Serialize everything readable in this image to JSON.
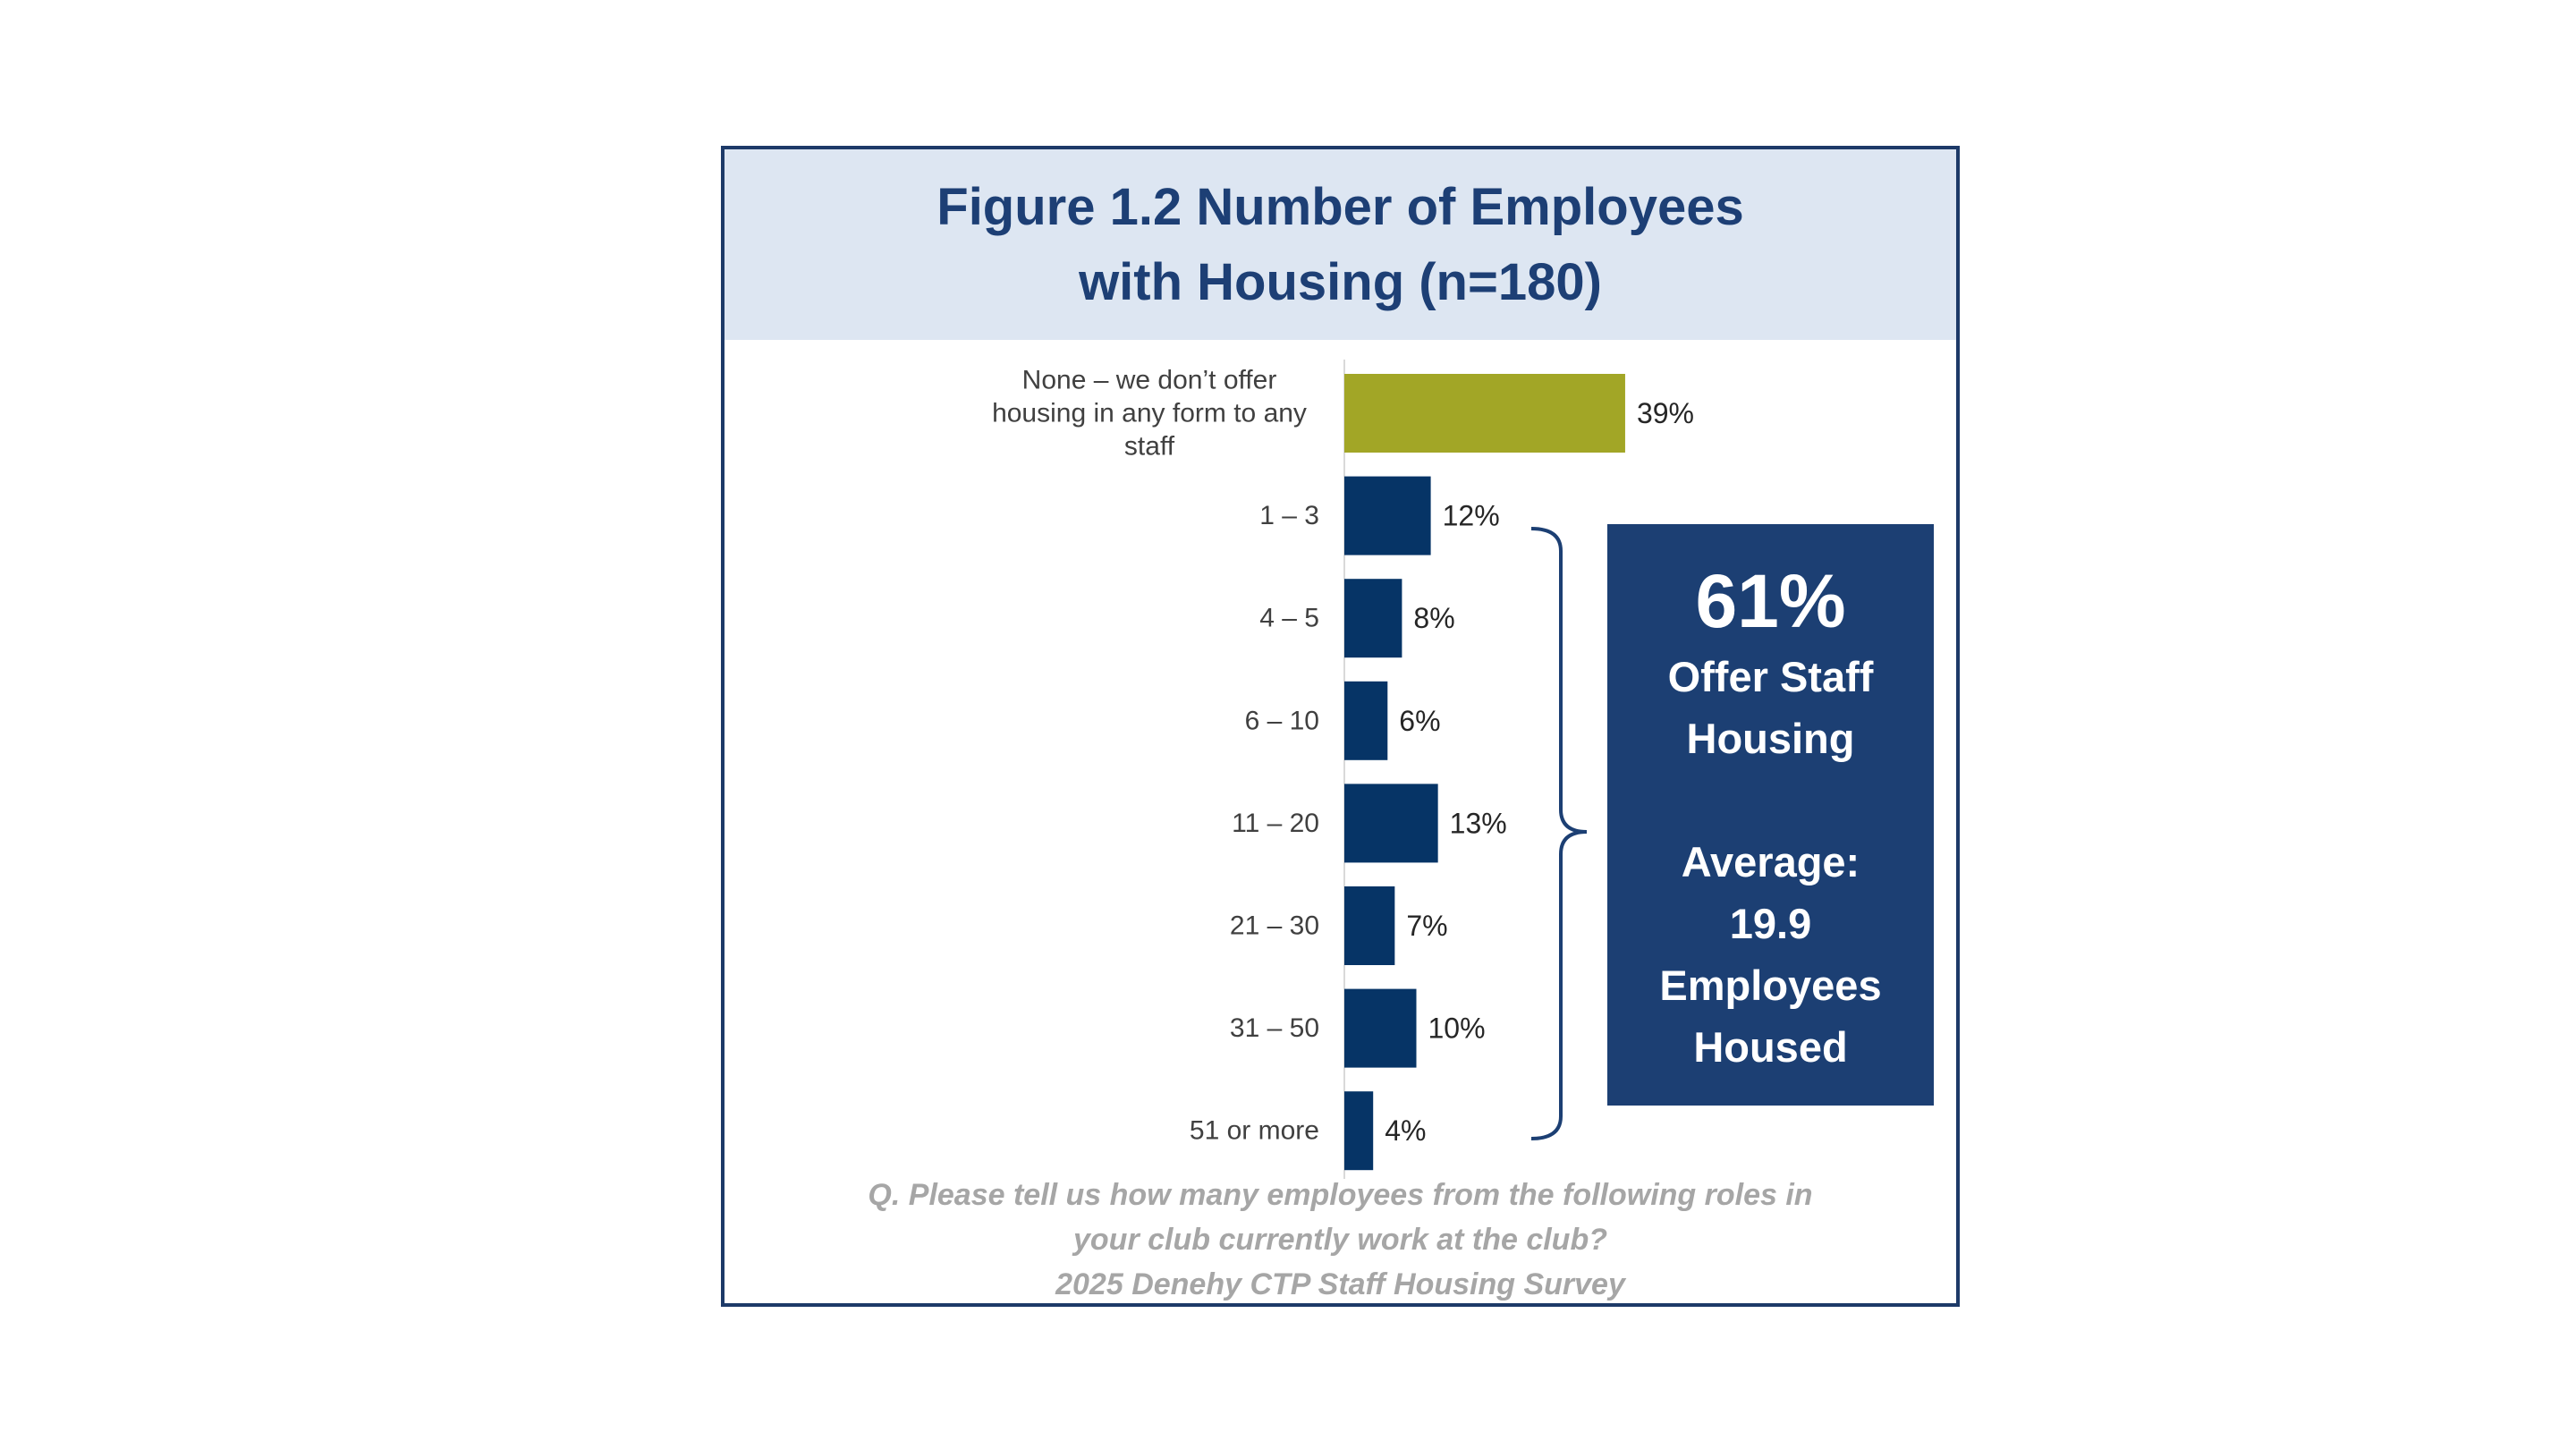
{
  "title": {
    "line1": "Figure 1.2 Number of Employees",
    "line2": "with Housing (n=180)"
  },
  "chart_data": {
    "type": "bar",
    "orientation": "horizontal",
    "title": "Figure 1.2 Number of Employees with Housing (n=180)",
    "categories": [
      [
        "None – we don’t offer",
        "housing in any form to any",
        "staff"
      ],
      [
        "1 – 3"
      ],
      [
        "4 – 5"
      ],
      [
        "6 – 10"
      ],
      [
        "11 – 20"
      ],
      [
        "21 – 30"
      ],
      [
        "31 – 50"
      ],
      [
        "51 or more"
      ]
    ],
    "values": [
      39,
      12,
      8,
      6,
      13,
      7,
      10,
      4
    ],
    "value_labels": [
      "39%",
      "12%",
      "8%",
      "6%",
      "13%",
      "7%",
      "10%",
      "4%"
    ],
    "colors": [
      "#a2a626",
      "#063466",
      "#063466",
      "#063466",
      "#063466",
      "#063466",
      "#063466",
      "#063466"
    ],
    "xlabel": "",
    "ylabel": "",
    "xlim": [
      0,
      100
    ],
    "grid": false
  },
  "callout": {
    "percent": "61%",
    "line1": "Offer Staff",
    "line2": "Housing",
    "line3": "Average:",
    "line4": "19.9",
    "line5": "Employees",
    "line6": "Housed"
  },
  "footnote": {
    "line1": "Q. Please tell us how many employees from the following roles in",
    "line2": "your club currently work at the club?",
    "line3": "2025 Denehy CTP Staff Housing Survey"
  },
  "colors": {
    "frame": "#1d3a68",
    "title_band": "#dde6f2",
    "title_text": "#1d3f75",
    "callout_bg": "#1c3f73",
    "footnote_text": "#a6a6a6"
  }
}
